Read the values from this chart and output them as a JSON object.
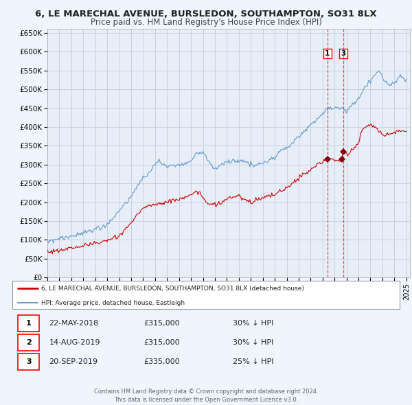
{
  "title": "6, LE MARECHAL AVENUE, BURSLEDON, SOUTHAMPTON, SO31 8LX",
  "subtitle": "Price paid vs. HM Land Registry's House Price Index (HPI)",
  "title_fontsize": 9.5,
  "subtitle_fontsize": 8.5,
  "bg_color": "#f0f4ff",
  "plot_bg_color": "#e8eef8",
  "grid_color": "#c8d0e0",
  "ylim": [
    0,
    660000
  ],
  "xlim_start": 1995.0,
  "xlim_end": 2025.3,
  "red_line_color": "#cc0000",
  "blue_line_color": "#6699cc",
  "marker_color": "#880000",
  "vline1_x": 2018.39,
  "vline2_x": 2019.72,
  "sale_points": [
    {
      "year": 2018.39,
      "value": 315000,
      "label": "1"
    },
    {
      "year": 2019.62,
      "value": 315000,
      "label": "2"
    },
    {
      "year": 2019.72,
      "value": 335000,
      "label": "3"
    }
  ],
  "legend_red_label": "6, LE MARECHAL AVENUE, BURSLEDON, SOUTHAMPTON, SO31 8LX (detached house)",
  "legend_blue_label": "HPI: Average price, detached house, Eastleigh",
  "table_rows": [
    [
      "1",
      "22-MAY-2018",
      "£315,000",
      "30% ↓ HPI"
    ],
    [
      "2",
      "14-AUG-2019",
      "£315,000",
      "30% ↓ HPI"
    ],
    [
      "3",
      "20-SEP-2019",
      "£335,000",
      "25% ↓ HPI"
    ]
  ],
  "footer_text": "Contains HM Land Registry data © Crown copyright and database right 2024.\nThis data is licensed under the Open Government Licence v3.0.",
  "yticks": [
    0,
    50000,
    100000,
    150000,
    200000,
    250000,
    300000,
    350000,
    400000,
    450000,
    500000,
    550000,
    600000,
    650000
  ]
}
